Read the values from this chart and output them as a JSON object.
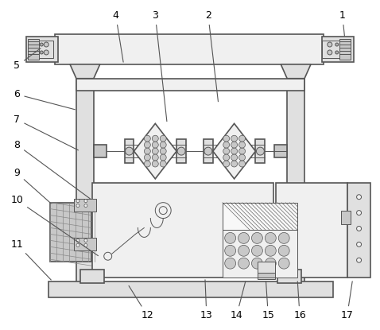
{
  "background_color": "#ffffff",
  "line_color": "#555555",
  "label_color": "#000000",
  "lw_main": 1.2,
  "lw_thin": 0.7,
  "gray_light": "#f0f0f0",
  "gray_mid": "#e0e0e0",
  "gray_dark": "#c8c8c8",
  "gray_darker": "#b0b0b0"
}
